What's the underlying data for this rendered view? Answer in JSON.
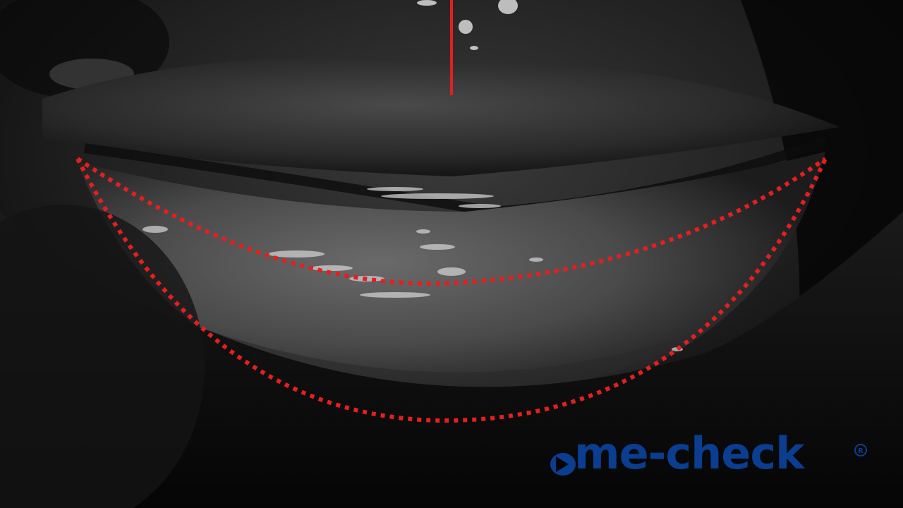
{
  "scene": {
    "description_colors": {
      "background": "#050505",
      "tissue_light": "#7a7a7a",
      "tissue_dark": "#1a1a1a",
      "guide_line": "#e41f1f",
      "brand": "#0b3d91"
    }
  },
  "logo": {
    "wordmark": "me-check",
    "registered_symbol": "®",
    "mark_icon": "play-arrow-icon"
  }
}
